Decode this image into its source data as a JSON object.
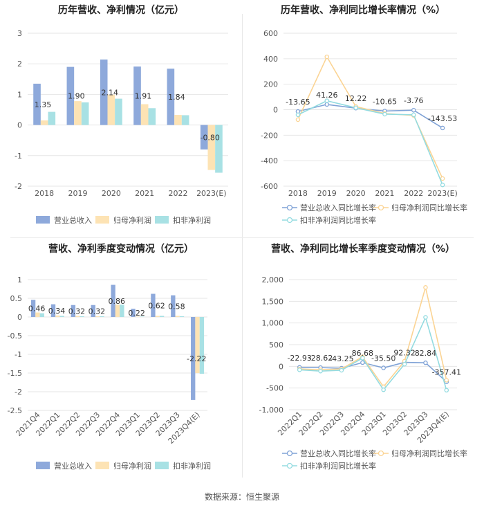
{
  "footer": "数据来源：恒生聚源",
  "colors": {
    "revenue": "#8ea9db",
    "net_profit": "#fde3b4",
    "deducted": "#a8e1e4",
    "rev_line": "#7fa2d6",
    "np_line": "#fbd494",
    "ded_line": "#93dbe0",
    "grid": "#e6e6e6",
    "text": "#555555",
    "title": "#222222"
  },
  "chart_data": [
    {
      "type": "bar",
      "title": "历年营收、净利情况（亿元）",
      "categories": [
        "2018",
        "2019",
        "2020",
        "2021",
        "2022",
        "2023(E)"
      ],
      "yticks": [
        3,
        2,
        1,
        0,
        -1,
        -2
      ],
      "ylim": [
        -2,
        3
      ],
      "series": [
        {
          "name": "营业总收入",
          "values": [
            1.35,
            1.9,
            2.14,
            1.91,
            1.84,
            -0.8
          ]
        },
        {
          "name": "归母净利润",
          "values": [
            0.15,
            0.78,
            0.99,
            0.68,
            0.33,
            -1.47
          ]
        },
        {
          "name": "扣非净利润",
          "values": [
            0.43,
            0.74,
            0.86,
            0.55,
            0.32,
            -1.56
          ]
        }
      ],
      "labels": [
        "1.35",
        "1.90",
        "2.14",
        "1.91",
        "1.84",
        "-0.80"
      ],
      "legend": "bottom"
    },
    {
      "type": "line",
      "title": "历年营收、净利同比增长率情况（%）",
      "categories": [
        "2018",
        "2019",
        "2020",
        "2021",
        "2022",
        "2023(E)"
      ],
      "yticks": [
        600,
        400,
        200,
        0,
        -200,
        -400,
        -600
      ],
      "ylim": [
        -600,
        600
      ],
      "series": [
        {
          "name": "营业总收入同比增长率",
          "values": [
            -13.65,
            41.26,
            12.22,
            -10.65,
            -3.76,
            -143.53
          ]
        },
        {
          "name": "归母净利润同比增长率",
          "values": [
            -78,
            415,
            25,
            -30,
            -45,
            -540
          ]
        },
        {
          "name": "扣非净利润同比增长率",
          "values": [
            -40,
            70,
            15,
            -35,
            -40,
            -590
          ]
        }
      ],
      "labels": [
        "-13.65",
        "41.26",
        "12.22",
        "-10.65",
        "-3.76",
        "-143.53"
      ],
      "legend": "bottom"
    },
    {
      "type": "bar",
      "title": "营收、净利季度变动情况（亿元）",
      "categories": [
        "2021Q4",
        "2022Q1",
        "2022Q2",
        "2022Q3",
        "2022Q4",
        "2023Q1",
        "2023Q2",
        "2023Q3",
        "2023Q4(E)"
      ],
      "yticks": [
        1,
        0.5,
        0,
        -0.5,
        -1,
        -1.5,
        -2,
        -2.5
      ],
      "ylim": [
        -2.5,
        1
      ],
      "series": [
        {
          "name": "营业总收入",
          "values": [
            0.46,
            0.34,
            0.32,
            0.32,
            0.86,
            0.22,
            0.62,
            0.58,
            -2.22
          ]
        },
        {
          "name": "归母净利润",
          "values": [
            0.12,
            0.04,
            0.03,
            0.02,
            0.33,
            0.01,
            0.03,
            0.03,
            -1.5
          ]
        },
        {
          "name": "扣非净利润",
          "values": [
            0.1,
            0.03,
            0.02,
            0.02,
            0.33,
            0.01,
            0.03,
            0.02,
            -1.52
          ]
        }
      ],
      "labels": [
        "0.46",
        "0.34",
        "0.32",
        "0.32",
        "0.86",
        "0.22",
        "0.62",
        "0.58",
        "-2.22"
      ],
      "legend": "bottom"
    },
    {
      "type": "line",
      "title": "营收、净利同比增长率季度变动情况（%）",
      "categories": [
        "2022Q1",
        "2022Q2",
        "2022Q3",
        "2022Q4",
        "2023Q1",
        "2023Q2",
        "2023Q3",
        "2023Q4(E)"
      ],
      "yticks": [
        2000,
        1500,
        1000,
        500,
        0,
        -500,
        -1000
      ],
      "yticklabels": [
        "2,000",
        "1,500",
        "1,000",
        "500",
        "0",
        "-500",
        "-1,000"
      ],
      "ylim": [
        -1000,
        2000
      ],
      "series": [
        {
          "name": "营业总收入同比增长率",
          "values": [
            -22.93,
            -28.62,
            -43.25,
            86.68,
            -35.5,
            92.32,
            82.84,
            -357.41
          ]
        },
        {
          "name": "归母净利润同比增长率",
          "values": [
            -60,
            -80,
            -60,
            220,
            -470,
            120,
            1820,
            -320
          ]
        },
        {
          "name": "扣非净利润同比增长率",
          "values": [
            -80,
            -110,
            -90,
            190,
            -540,
            50,
            1130,
            -550
          ]
        }
      ],
      "labels": [
        "-22.93",
        "-28.62",
        "-43.25",
        "86.68",
        "-35.50",
        "92.32",
        "82.84",
        "-357.41"
      ],
      "legend": "bottom"
    }
  ]
}
